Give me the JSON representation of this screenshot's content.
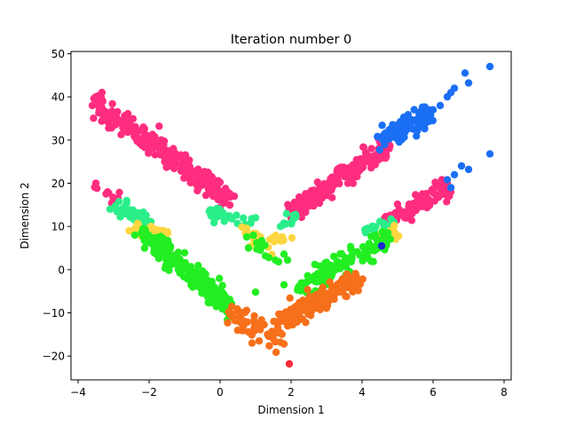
{
  "chart_data": {
    "type": "scatter",
    "title": "Iteration number 0",
    "xlabel": "Dimension 1",
    "ylabel": "Dimension 2",
    "xlim": [
      -4.2,
      8.2
    ],
    "ylim": [
      -25.5,
      50.5
    ],
    "x_ticks": [
      -4,
      -2,
      0,
      2,
      4,
      6,
      8
    ],
    "y_ticks": [
      -20,
      -10,
      0,
      10,
      20,
      30,
      40,
      50
    ],
    "x_tick_labels": [
      "−4",
      "−2",
      "0",
      "2",
      "4",
      "6",
      "8"
    ],
    "y_tick_labels": [
      "−20",
      "−10",
      "0",
      "10",
      "20",
      "30",
      "40",
      "50"
    ],
    "grid": false,
    "legend": "none",
    "series": [
      {
        "color": "#ff2d7f",
        "segments": [
          {
            "x0": -3.5,
            "y0": 38.5,
            "x1": 0.3,
            "y1": 16,
            "n": 260,
            "noise": 1.4
          },
          {
            "x0": 2.0,
            "y0": 13.5,
            "x1": 4.7,
            "y1": 28.5,
            "n": 200,
            "noise": 1.3
          },
          {
            "x0": -3.5,
            "y0": 19,
            "x1": -2.9,
            "y1": 16,
            "n": 12,
            "noise": 1.0
          },
          {
            "x0": 4.6,
            "y0": 10.5,
            "x1": 6.4,
            "y1": 19.5,
            "n": 110,
            "noise": 1.1
          }
        ],
        "points": [
          [
            -3.5,
            40
          ],
          [
            -3.5,
            20
          ],
          [
            -3.6,
            38
          ],
          [
            0.1,
            18
          ],
          [
            0.4,
            17
          ],
          [
            2.0,
            12
          ],
          [
            5.2,
            12
          ],
          [
            6.5,
            18
          ]
        ]
      },
      {
        "color": "#1a6ff5",
        "segments": [
          {
            "x0": 4.5,
            "y0": 30,
            "x1": 5.9,
            "y1": 36,
            "n": 110,
            "noise": 1.3
          }
        ],
        "points": [
          [
            6.0,
            37
          ],
          [
            6.2,
            38
          ],
          [
            6.4,
            40
          ],
          [
            6.6,
            42
          ],
          [
            6.5,
            41
          ],
          [
            6.9,
            45.5
          ],
          [
            7.0,
            43.2
          ],
          [
            7.6,
            47
          ],
          [
            6.4,
            20.8
          ],
          [
            6.6,
            22
          ],
          [
            6.5,
            19
          ],
          [
            6.8,
            24
          ],
          [
            7.0,
            23.2
          ],
          [
            7.6,
            26.8
          ],
          [
            4.8,
            31
          ],
          [
            5.2,
            34
          ]
        ]
      },
      {
        "color": "#2aee8a",
        "segments": [
          {
            "x0": -3.0,
            "y0": 15,
            "x1": -2.0,
            "y1": 11,
            "n": 45,
            "noise": 1.0
          },
          {
            "x0": -0.3,
            "y0": 13,
            "x1": 0.9,
            "y1": 11,
            "n": 30,
            "noise": 0.9
          },
          {
            "x0": 1.7,
            "y0": 11,
            "x1": 2.3,
            "y1": 12,
            "n": 12,
            "noise": 0.7
          },
          {
            "x0": 4.1,
            "y0": 9,
            "x1": 4.9,
            "y1": 11,
            "n": 20,
            "noise": 0.8
          }
        ],
        "points": [
          [
            -3.1,
            14
          ],
          [
            1.0,
            12
          ],
          [
            1.7,
            10
          ],
          [
            2.1,
            12
          ]
        ]
      },
      {
        "color": "#fed740",
        "segments": [
          {
            "x0": -2.6,
            "y0": 9,
            "x1": -1.4,
            "y1": 8.5,
            "n": 35,
            "noise": 0.9
          },
          {
            "x0": 0.5,
            "y0": 10,
            "x1": 1.1,
            "y1": 6.5,
            "n": 16,
            "noise": 0.8
          },
          {
            "x0": 1.5,
            "y0": 6.5,
            "x1": 2.1,
            "y1": 8,
            "n": 14,
            "noise": 0.8
          },
          {
            "x0": 4.6,
            "y0": 7,
            "x1": 5.0,
            "y1": 9.5,
            "n": 12,
            "noise": 0.8
          }
        ],
        "points": [
          [
            1.4,
            7
          ],
          [
            -2.3,
            10
          ],
          [
            4.8,
            8
          ]
        ]
      },
      {
        "color": "#22ee22",
        "segments": [
          {
            "x0": -2.2,
            "y0": 8.5,
            "x1": 0.3,
            "y1": -9,
            "n": 230,
            "noise": 1.3
          },
          {
            "x0": 2.2,
            "y0": -4.5,
            "x1": 4.8,
            "y1": 7.5,
            "n": 150,
            "noise": 1.3
          },
          {
            "x0": 0.9,
            "y0": 6,
            "x1": 1.6,
            "y1": 3,
            "n": 14,
            "noise": 1.0
          }
        ],
        "points": [
          [
            1.8,
            -3.5
          ],
          [
            1.8,
            3.6
          ],
          [
            1.9,
            2.2
          ],
          [
            1.0,
            -5.2
          ],
          [
            -2.4,
            8
          ],
          [
            0.8,
            5
          ]
        ]
      },
      {
        "color": "#f76f1a",
        "segments": [
          {
            "x0": 0.2,
            "y0": -10,
            "x1": 1.6,
            "y1": -16,
            "n": 55,
            "noise": 1.3
          },
          {
            "x0": 1.6,
            "y0": -12,
            "x1": 4.0,
            "y1": -1.5,
            "n": 160,
            "noise": 1.4
          }
        ],
        "points": [
          [
            0.9,
            -17
          ],
          [
            1.1,
            -16.5
          ],
          [
            1.8,
            -17.2
          ],
          [
            1.5,
            -16
          ],
          [
            0.6,
            -12
          ],
          [
            1.9,
            -13
          ],
          [
            1.7,
            -16.8
          ]
        ]
      },
      {
        "color": "#ff2b3a",
        "segments": [],
        "points": [
          [
            1.95,
            -21.8
          ]
        ]
      },
      {
        "color": "#1f2bd5",
        "segments": [],
        "points": [
          [
            4.55,
            5.5
          ]
        ]
      }
    ]
  }
}
